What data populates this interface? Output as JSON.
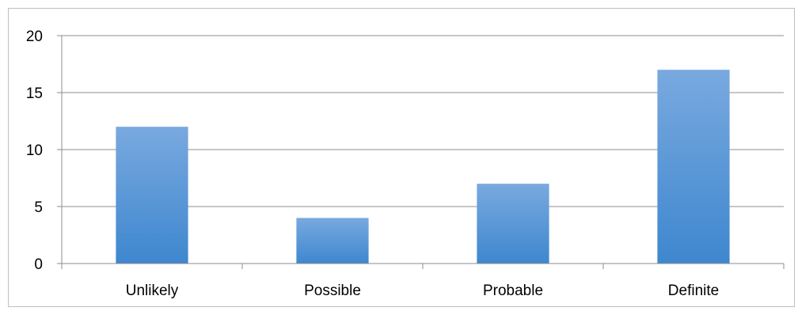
{
  "chart_data": {
    "type": "bar",
    "categories": [
      "Unlikely",
      "Possible",
      "Probable",
      "Definite"
    ],
    "values": [
      12,
      4,
      7,
      17
    ],
    "title": "",
    "xlabel": "",
    "ylabel": "",
    "ylim": [
      0,
      20
    ],
    "yticks": [
      0,
      5,
      10,
      15,
      20
    ],
    "grid": true,
    "legend": "none",
    "colors": {
      "bar_top": "#79a9df",
      "bar_bottom": "#3e87cf",
      "grid": "#8c8c8c",
      "frame": "#bfbfbf",
      "axis": "#8c8c8c"
    }
  }
}
